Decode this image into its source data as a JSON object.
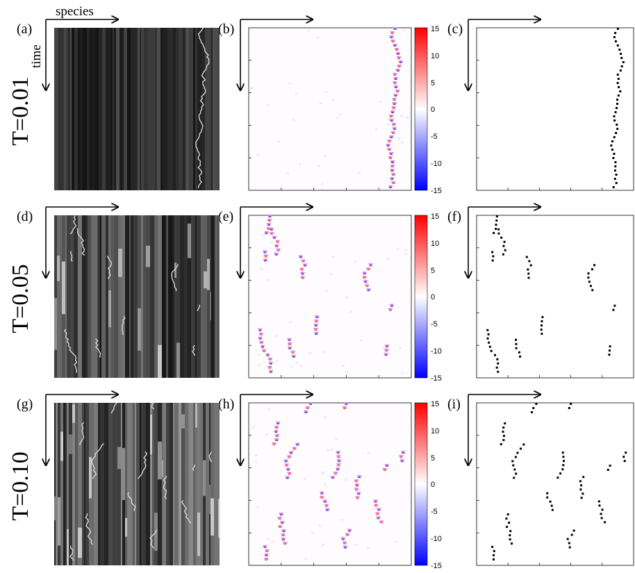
{
  "axis_labels": {
    "horizontal": "species",
    "vertical": "time"
  },
  "rows": [
    {
      "label": "T=0.01",
      "panels": [
        {
          "letter": "(a)",
          "kind": "gray"
        },
        {
          "letter": "(b)",
          "kind": "color"
        },
        {
          "letter": "(c)",
          "kind": "binary"
        }
      ]
    },
    {
      "label": "T=0.05",
      "panels": [
        {
          "letter": "(d)",
          "kind": "gray"
        },
        {
          "letter": "(e)",
          "kind": "color"
        },
        {
          "letter": "(f)",
          "kind": "binary"
        }
      ]
    },
    {
      "label": "T=0.10",
      "panels": [
        {
          "letter": "(g)",
          "kind": "gray"
        },
        {
          "letter": "(h)",
          "kind": "color"
        },
        {
          "letter": "(i)",
          "kind": "binary"
        }
      ]
    }
  ],
  "colorbar": {
    "ticks": [
      "15",
      "10",
      "5",
      "0",
      "-5",
      "-10",
      "-15"
    ],
    "colors": {
      "max": "#ff0000",
      "mid": "#ffffff",
      "min": "#0000ff"
    }
  },
  "colors": {
    "trajectory": "#000000",
    "hot": "#ff3333",
    "cold": "#6655ff"
  }
}
